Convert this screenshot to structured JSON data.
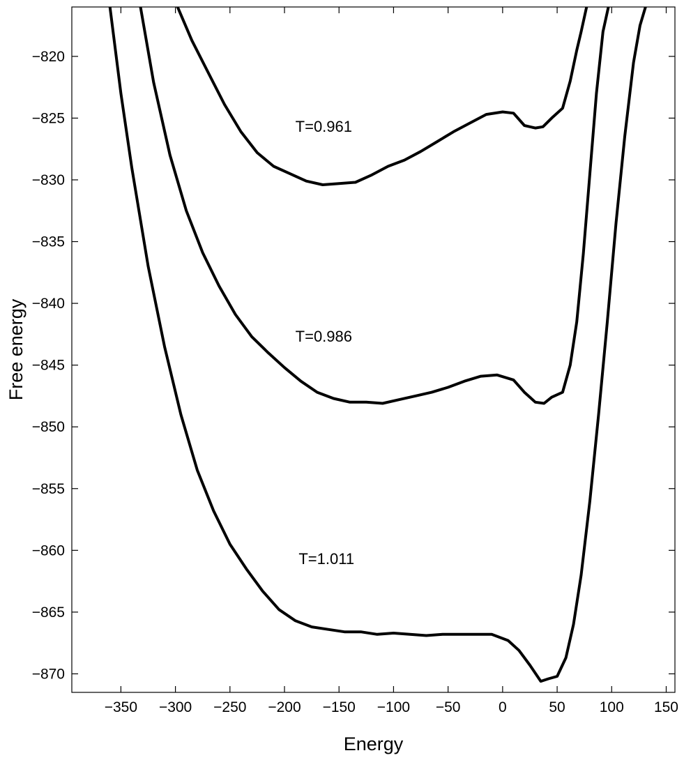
{
  "chart_data": {
    "type": "line",
    "xlabel": "Energy",
    "ylabel": "Free energy",
    "xlim": [
      -395,
      158
    ],
    "ylim": [
      -871.5,
      -816
    ],
    "xticks": [
      -350,
      -300,
      -250,
      -200,
      -150,
      -100,
      -50,
      0,
      50,
      100,
      150
    ],
    "yticks": [
      -820,
      -825,
      -830,
      -835,
      -840,
      -845,
      -850,
      -855,
      -860,
      -865,
      -870
    ],
    "xtick_labels": [
      "−350",
      "−300",
      "−250",
      "−200",
      "−150",
      "−100",
      "−50",
      "0",
      "50",
      "100",
      "150"
    ],
    "ytick_labels": [
      "−820",
      "−825",
      "−830",
      "−835",
      "−840",
      "−845",
      "−850",
      "−855",
      "−860",
      "−865",
      "−870"
    ],
    "series": [
      {
        "name": "T=0.961",
        "x": [
          -298,
          -285,
          -270,
          -255,
          -240,
          -225,
          -210,
          -195,
          -180,
          -165,
          -150,
          -135,
          -120,
          -105,
          -90,
          -75,
          -60,
          -45,
          -30,
          -15,
          0,
          10,
          20,
          30,
          37,
          45,
          55,
          62,
          68,
          72,
          77
        ],
        "y": [
          -816,
          -818.7,
          -821.3,
          -823.9,
          -826.1,
          -827.8,
          -828.9,
          -829.5,
          -830.1,
          -830.4,
          -830.3,
          -830.2,
          -829.6,
          -828.9,
          -828.4,
          -827.7,
          -826.9,
          -826.1,
          -825.4,
          -824.7,
          -824.5,
          -824.6,
          -825.6,
          -825.8,
          -825.7,
          -825,
          -824.2,
          -822,
          -819.5,
          -818,
          -816
        ]
      },
      {
        "name": "T=0.986",
        "x": [
          -332,
          -320,
          -305,
          -290,
          -275,
          -260,
          -245,
          -230,
          -215,
          -200,
          -185,
          -170,
          -155,
          -140,
          -125,
          -110,
          -95,
          -80,
          -65,
          -50,
          -35,
          -20,
          -5,
          10,
          20,
          30,
          38,
          45,
          55,
          62,
          68,
          74,
          80,
          86,
          92,
          97
        ],
        "y": [
          -816,
          -822.1,
          -828,
          -832.5,
          -835.9,
          -838.6,
          -840.9,
          -842.7,
          -844,
          -845.2,
          -846.3,
          -847.2,
          -847.7,
          -848,
          -848,
          -848.1,
          -847.8,
          -847.5,
          -847.2,
          -846.8,
          -846.3,
          -845.9,
          -845.8,
          -846.2,
          -847.2,
          -848,
          -848.1,
          -847.6,
          -847.2,
          -845,
          -841.5,
          -836,
          -829.5,
          -823,
          -818,
          -816
        ]
      },
      {
        "name": "T=1.011",
        "x": [
          -360,
          -350,
          -340,
          -325,
          -310,
          -295,
          -280,
          -265,
          -250,
          -235,
          -220,
          -205,
          -190,
          -175,
          -160,
          -145,
          -130,
          -115,
          -100,
          -85,
          -70,
          -55,
          -40,
          -25,
          -10,
          5,
          15,
          25,
          35,
          42,
          50,
          58,
          65,
          72,
          80,
          88,
          96,
          104,
          112,
          120,
          126,
          131
        ],
        "y": [
          -816,
          -823,
          -829,
          -837,
          -843.5,
          -849,
          -853.5,
          -856.8,
          -859.5,
          -861.5,
          -863.3,
          -864.8,
          -865.7,
          -866.2,
          -866.4,
          -866.6,
          -866.6,
          -866.8,
          -866.7,
          -866.8,
          -866.9,
          -866.8,
          -866.8,
          -866.8,
          -866.8,
          -867.3,
          -868.1,
          -869.3,
          -870.6,
          -870.4,
          -870.2,
          -868.7,
          -866,
          -862,
          -856,
          -849,
          -841.5,
          -833.5,
          -826.5,
          -820.5,
          -817.5,
          -816
        ]
      }
    ],
    "annotations": [
      {
        "text": "T=0.961",
        "x": -190,
        "y": -826.1
      },
      {
        "text": "T=0.986",
        "x": -190,
        "y": -843.1
      },
      {
        "text": "T=1.011",
        "x": -187,
        "y": -861.1
      }
    ],
    "grid": false,
    "legend": "none"
  }
}
